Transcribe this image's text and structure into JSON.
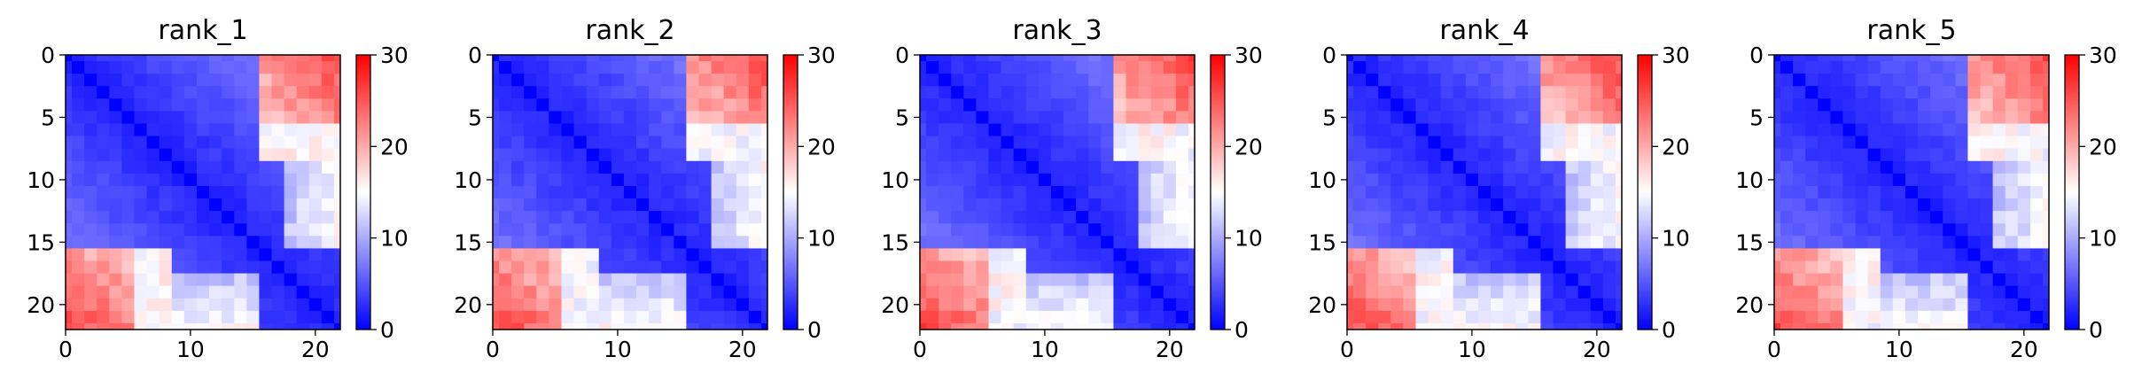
{
  "chart_data": [
    {
      "type": "heatmap",
      "title": "rank_1",
      "matrix": [],
      "x_ticks": [
        "0",
        "10",
        "20"
      ],
      "y_ticks": [
        "0",
        "5",
        "10",
        "15",
        "20"
      ],
      "xlim": [
        0,
        22
      ],
      "ylim": [
        22,
        0
      ],
      "colorbar": {
        "ticks": [
          "0",
          "10",
          "20",
          "30"
        ],
        "range": [
          0,
          30
        ],
        "colormap": "bwr"
      }
    },
    {
      "type": "heatmap",
      "title": "rank_2",
      "matrix": [],
      "x_ticks": [
        "0",
        "10",
        "20"
      ],
      "y_ticks": [
        "0",
        "5",
        "10",
        "15",
        "20"
      ],
      "xlim": [
        0,
        22
      ],
      "ylim": [
        22,
        0
      ],
      "colorbar": {
        "ticks": [
          "0",
          "10",
          "20",
          "30"
        ],
        "range": [
          0,
          30
        ],
        "colormap": "bwr"
      }
    },
    {
      "type": "heatmap",
      "title": "rank_3",
      "matrix": [],
      "x_ticks": [
        "0",
        "10",
        "20"
      ],
      "y_ticks": [
        "0",
        "5",
        "10",
        "15",
        "20"
      ],
      "xlim": [
        0,
        22
      ],
      "ylim": [
        22,
        0
      ],
      "colorbar": {
        "ticks": [
          "0",
          "10",
          "20",
          "30"
        ],
        "range": [
          0,
          30
        ],
        "colormap": "bwr"
      }
    },
    {
      "type": "heatmap",
      "title": "rank_4",
      "matrix": [],
      "x_ticks": [
        "0",
        "10",
        "20"
      ],
      "y_ticks": [
        "0",
        "5",
        "10",
        "15",
        "20"
      ],
      "xlim": [
        0,
        22
      ],
      "ylim": [
        22,
        0
      ],
      "colorbar": {
        "ticks": [
          "0",
          "10",
          "20",
          "30"
        ],
        "range": [
          0,
          30
        ],
        "colormap": "bwr"
      }
    },
    {
      "type": "heatmap",
      "title": "rank_5",
      "matrix": [],
      "x_ticks": [
        "0",
        "10",
        "20"
      ],
      "y_ticks": [
        "0",
        "5",
        "10",
        "15",
        "20"
      ],
      "xlim": [
        0,
        22
      ],
      "ylim": [
        22,
        0
      ],
      "colorbar": {
        "ticks": [
          "0",
          "10",
          "20",
          "30"
        ],
        "range": [
          0,
          30
        ],
        "colormap": "bwr"
      }
    }
  ],
  "colors": {
    "low": "#0000ff",
    "mid": "#ffffff",
    "high": "#ff0000"
  }
}
